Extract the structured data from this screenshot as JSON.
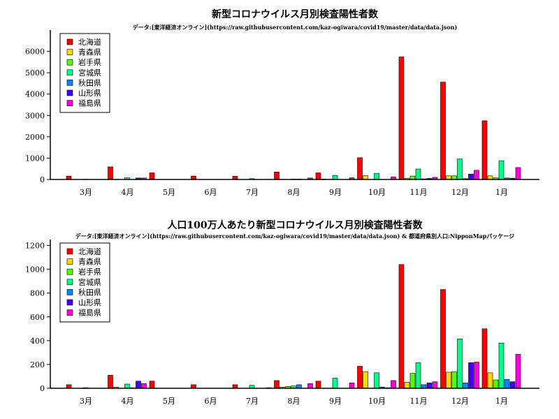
{
  "colors": [
    "#ff0000",
    "#ffd700",
    "#55ff00",
    "#00ff88",
    "#0088ff",
    "#4400ff",
    "#ff00dd"
  ],
  "chart_data": [
    {
      "type": "bar",
      "title": "新型コロナウイルス月別検査陽性者数",
      "subtitle": "データ:[東洋経済オンライン](https://raw.githubusercontent.com/kaz-ogiwara/covid19/master/data/data.json)",
      "categories": [
        "3月",
        "4月",
        "5月",
        "6月",
        "7月",
        "8月",
        "9月",
        "10月",
        "11月",
        "12月",
        "1月"
      ],
      "ylim": [
        0,
        7000
      ],
      "yticks": [
        0,
        1000,
        2000,
        3000,
        4000,
        5000,
        6000
      ],
      "grid": false,
      "legend": "top-left",
      "series": [
        {
          "name": "北海道",
          "values": [
            160,
            590,
            310,
            160,
            150,
            350,
            310,
            1020,
            5740,
            4560,
            2750
          ]
        },
        {
          "name": "青森県",
          "values": [
            0,
            10,
            0,
            0,
            0,
            10,
            20,
            180,
            60,
            170,
            170
          ]
        },
        {
          "name": "岩手県",
          "values": [
            0,
            0,
            0,
            0,
            0,
            0,
            10,
            0,
            160,
            170,
            80
          ]
        },
        {
          "name": "宮城県",
          "values": [
            10,
            80,
            0,
            0,
            40,
            20,
            190,
            290,
            490,
            960,
            880
          ]
        },
        {
          "name": "秋田県",
          "values": [
            0,
            10,
            0,
            0,
            0,
            20,
            0,
            0,
            30,
            40,
            70
          ]
        },
        {
          "name": "山形県",
          "values": [
            0,
            70,
            0,
            0,
            0,
            0,
            0,
            0,
            50,
            250,
            60
          ]
        },
        {
          "name": "福島県",
          "values": [
            0,
            70,
            0,
            0,
            10,
            70,
            80,
            120,
            100,
            430,
            560
          ]
        }
      ]
    },
    {
      "type": "bar",
      "title": "人口100万人あたり新型コロナウイルス月別検査陽性者数",
      "subtitle": "データ:[東洋経済オンライン](https://raw.githubusercontent.com/kaz-ogiwara/covid19/master/data/data.json) & 都道府県別人口:NipponMapパッケージ",
      "categories": [
        "3月",
        "4月",
        "5月",
        "6月",
        "7月",
        "8月",
        "9月",
        "10月",
        "11月",
        "12月",
        "1月"
      ],
      "ylim": [
        0,
        1250
      ],
      "yticks": [
        0,
        200,
        400,
        600,
        800,
        1000,
        1200
      ],
      "grid": false,
      "legend": "top-left",
      "series": [
        {
          "name": "北海道",
          "values": [
            30,
            110,
            60,
            30,
            30,
            65,
            60,
            185,
            1040,
            830,
            500
          ]
        },
        {
          "name": "青森県",
          "values": [
            0,
            10,
            0,
            0,
            0,
            10,
            0,
            140,
            50,
            135,
            130
          ]
        },
        {
          "name": "岩手県",
          "values": [
            0,
            0,
            0,
            0,
            0,
            15,
            0,
            0,
            125,
            140,
            70
          ]
        },
        {
          "name": "宮城県",
          "values": [
            5,
            35,
            0,
            0,
            25,
            20,
            85,
            130,
            215,
            415,
            380
          ]
        },
        {
          "name": "秋田県",
          "values": [
            0,
            5,
            0,
            0,
            0,
            30,
            0,
            10,
            30,
            45,
            75
          ]
        },
        {
          "name": "山形県",
          "values": [
            0,
            60,
            0,
            0,
            0,
            0,
            0,
            5,
            45,
            215,
            55
          ]
        },
        {
          "name": "福島県",
          "values": [
            0,
            40,
            0,
            0,
            5,
            40,
            45,
            65,
            55,
            220,
            285
          ]
        }
      ]
    }
  ]
}
